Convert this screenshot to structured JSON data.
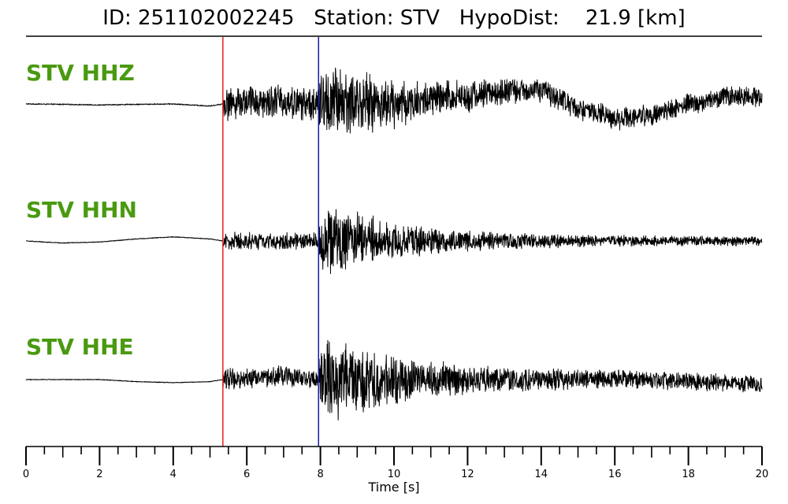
{
  "header": {
    "title": "ID: 251102002245   Station: STV   HypoDist:    21.9 [km]"
  },
  "colors": {
    "label": "#4a9a10",
    "trace": "#000000",
    "p_pick": "#e82020",
    "s_pick": "#1a1aa8",
    "axis": "#000000"
  },
  "chart_data": {
    "type": "line",
    "title": "ID: 251102002245   Station: STV   HypoDist:    21.9 [km]",
    "xlabel": "Time [s]",
    "ylabel": "",
    "xlim": [
      0,
      20
    ],
    "x_ticks": [
      0,
      2,
      4,
      6,
      8,
      10,
      12,
      14,
      16,
      18,
      20
    ],
    "x_tick_labels": [
      "0",
      "2",
      "4",
      "6",
      "8",
      "10",
      "12",
      "14",
      "16",
      "18",
      "20"
    ],
    "minor_tick_step": 0.5,
    "picks": [
      {
        "name": "P",
        "time": 5.35,
        "color": "#e82020"
      },
      {
        "name": "S",
        "time": 7.95,
        "color": "#1a1aa8"
      }
    ],
    "series": [
      {
        "name": "STV HHZ",
        "pre_event_amplitude": 0.03,
        "p_coda": {
          "start": 5.35,
          "amplitude": 0.9
        },
        "s_coda": {
          "start": 7.95,
          "peak_amplitude": 2.4,
          "decay_to": 0.55
        },
        "long_period_wave": {
          "period": 6.5,
          "amplitude": 0.9,
          "onset": 13.0
        },
        "samples": [
          [
            0,
            0.0
          ],
          [
            1,
            -0.02
          ],
          [
            2,
            -0.05
          ],
          [
            3,
            -0.02
          ],
          [
            4,
            0.0
          ],
          [
            5,
            -0.1
          ],
          [
            5.35,
            0.0
          ],
          [
            6,
            0.2
          ],
          [
            7,
            0.1
          ],
          [
            8,
            0.0
          ],
          [
            9,
            0.1
          ],
          [
            10,
            0.0
          ],
          [
            11,
            0.2
          ],
          [
            12,
            0.4
          ],
          [
            13,
            0.6
          ],
          [
            14,
            0.4
          ],
          [
            15,
            -0.5
          ],
          [
            16,
            -0.8
          ],
          [
            17,
            -0.3
          ],
          [
            18,
            0.3
          ],
          [
            19,
            0.5
          ],
          [
            20,
            0.2
          ]
        ]
      },
      {
        "name": "STV HHN",
        "pre_event_amplitude": 0.02,
        "p_coda": {
          "start": 5.35,
          "amplitude": 0.45
        },
        "s_coda": {
          "start": 7.95,
          "peak_amplitude": 2.2,
          "decay_to": 0.25
        },
        "long_period_wave": {
          "period": 0,
          "amplitude": 0,
          "onset": 0
        },
        "samples": [
          [
            0,
            0.0
          ],
          [
            1,
            -0.1
          ],
          [
            2,
            -0.05
          ],
          [
            3,
            0.1
          ],
          [
            4,
            0.2
          ],
          [
            5,
            0.1
          ],
          [
            5.35,
            0.0
          ],
          [
            6,
            0.0
          ],
          [
            7,
            0.0
          ],
          [
            8,
            0.0
          ],
          [
            9,
            0.1
          ],
          [
            10,
            0.0
          ],
          [
            11,
            0.0
          ],
          [
            12,
            0.0
          ],
          [
            13,
            0.0
          ],
          [
            14,
            0.0
          ],
          [
            15,
            0.0
          ],
          [
            16,
            0.0
          ],
          [
            17,
            0.0
          ],
          [
            18,
            0.0
          ],
          [
            19,
            0.0
          ],
          [
            20,
            0.0
          ]
        ]
      },
      {
        "name": "STV HHE",
        "pre_event_amplitude": 0.02,
        "p_coda": {
          "start": 5.35,
          "amplitude": 0.55
        },
        "s_coda": {
          "start": 7.95,
          "peak_amplitude": 2.6,
          "decay_to": 0.45
        },
        "long_period_wave": {
          "period": 0,
          "amplitude": 0,
          "onset": 0
        },
        "samples": [
          [
            0,
            0.0
          ],
          [
            1,
            0.0
          ],
          [
            2,
            0.0
          ],
          [
            3,
            -0.1
          ],
          [
            4,
            -0.15
          ],
          [
            5,
            -0.1
          ],
          [
            5.35,
            0.0
          ],
          [
            6,
            0.1
          ],
          [
            7,
            0.2
          ],
          [
            8,
            0.0
          ],
          [
            9,
            0.0
          ],
          [
            10,
            0.0
          ],
          [
            11,
            0.0
          ],
          [
            12,
            0.0
          ],
          [
            13,
            0.0
          ],
          [
            14,
            0.0
          ],
          [
            15,
            0.0
          ],
          [
            16,
            0.0
          ],
          [
            17,
            0.0
          ],
          [
            18,
            -0.1
          ],
          [
            19,
            -0.15
          ],
          [
            20,
            -0.2
          ]
        ]
      }
    ],
    "grid": false,
    "legend": "none"
  }
}
